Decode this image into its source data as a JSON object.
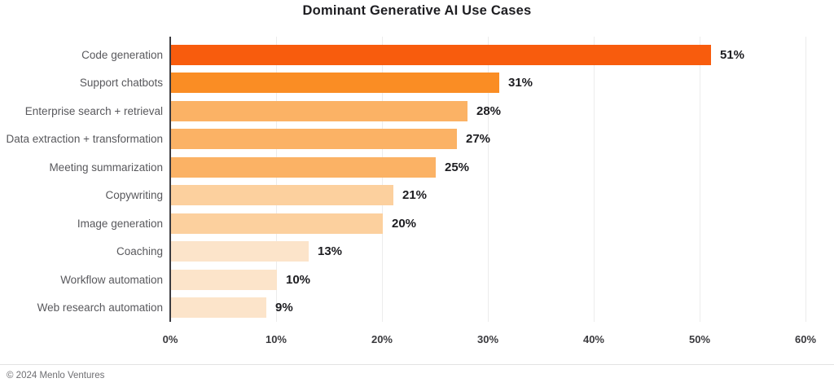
{
  "title": "Dominant Generative AI Use Cases",
  "footer": {
    "copyright": "© 2024 Menlo Ventures"
  },
  "chart_data": {
    "type": "bar",
    "orientation": "horizontal",
    "title": "Dominant Generative AI Use Cases",
    "categories": [
      "Code generation",
      "Support chatbots",
      "Enterprise search + retrieval",
      "Data extraction + transformation",
      "Meeting summarization",
      "Copywriting",
      "Image generation",
      "Coaching",
      "Workflow automation",
      "Web research automation"
    ],
    "values": [
      51,
      31,
      28,
      27,
      25,
      21,
      20,
      13,
      10,
      9
    ],
    "value_labels": [
      "51%",
      "31%",
      "28%",
      "27%",
      "25%",
      "21%",
      "20%",
      "13%",
      "10%",
      "9%"
    ],
    "bar_colors": [
      "#F85C0D",
      "#FA8D24",
      "#FBB265",
      "#FBB265",
      "#FBB265",
      "#FCD09E",
      "#FCD09E",
      "#FCE4CA",
      "#FCE4CA",
      "#FCE4CA"
    ],
    "xlabel": "",
    "ylabel": "",
    "xlim": [
      0,
      60
    ],
    "x_ticks": [
      "0%",
      "10%",
      "20%",
      "30%",
      "40%",
      "50%",
      "60%"
    ],
    "x_tick_values": [
      0,
      10,
      20,
      30,
      40,
      50,
      60
    ],
    "grid": "vertical",
    "gridline_color": "#ececec",
    "axis_color": "#3b3b40",
    "legend": "none"
  }
}
